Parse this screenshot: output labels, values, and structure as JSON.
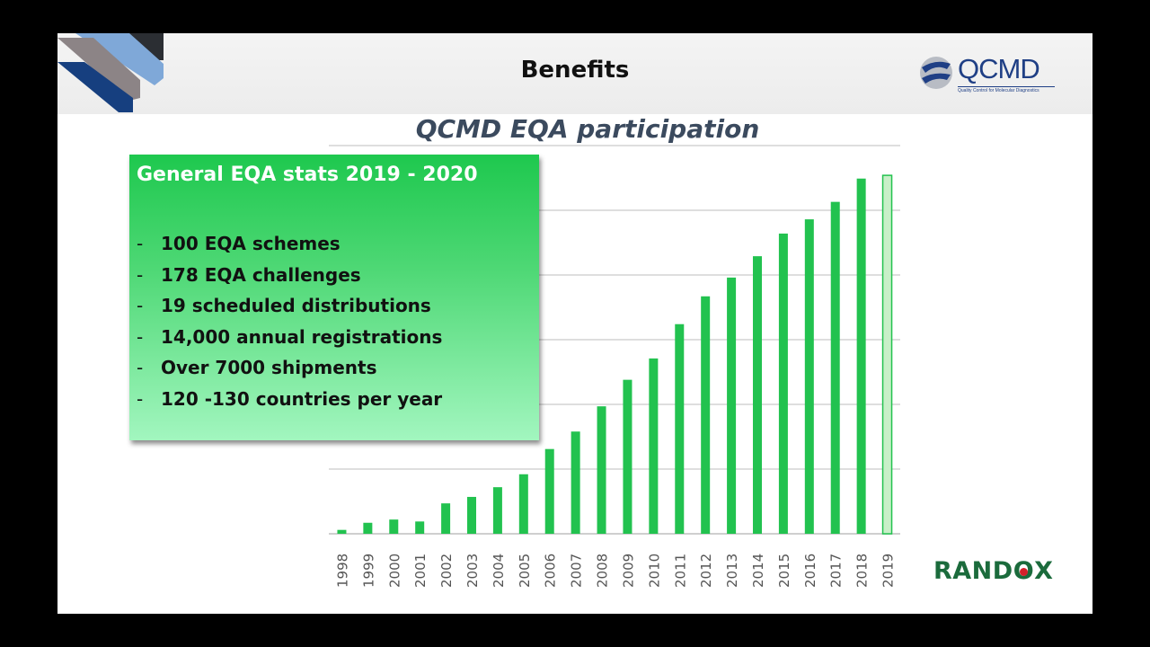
{
  "header": {
    "title": "Benefits"
  },
  "logos": {
    "qcmd": {
      "name": "QCMD",
      "tagline": "Quality Control for Molecular Diagnostics",
      "color": "#1f3f85"
    },
    "randox": {
      "name_pre": "RAND",
      "name_o": "O",
      "name_post": "X",
      "color": "#1b6b3c",
      "dot_color": "#d4202a"
    }
  },
  "stats_box": {
    "title": "General EQA stats 2019 - 2020",
    "bullet": "-",
    "items": [
      "100 EQA schemes",
      "178 EQA challenges",
      "19 scheduled distributions",
      "14,000 annual registrations",
      "Over 7000 shipments",
      "120 -130 countries per year"
    ]
  },
  "chart_data": {
    "type": "bar",
    "title": "QCMD EQA participation",
    "xlabel": "",
    "ylabel": "",
    "y_units": "gridline intervals (no axis labels shown)",
    "ylim": [
      0,
      6
    ],
    "grid": true,
    "categories": [
      "1998",
      "1999",
      "2000",
      "2001",
      "2002",
      "2003",
      "2004",
      "2005",
      "2006",
      "2007",
      "2008",
      "2009",
      "2010",
      "2011",
      "2012",
      "2013",
      "2014",
      "2015",
      "2016",
      "2017",
      "2018",
      "2019"
    ],
    "values": [
      0.06,
      0.17,
      0.22,
      0.19,
      0.47,
      0.57,
      0.72,
      0.92,
      1.31,
      1.58,
      1.97,
      2.38,
      2.71,
      3.24,
      3.67,
      3.96,
      4.29,
      4.64,
      4.86,
      5.13,
      5.49,
      5.54
    ],
    "highlight_last": true,
    "bar_color": "#22c24f",
    "last_bar_color": "#c8efc8"
  }
}
